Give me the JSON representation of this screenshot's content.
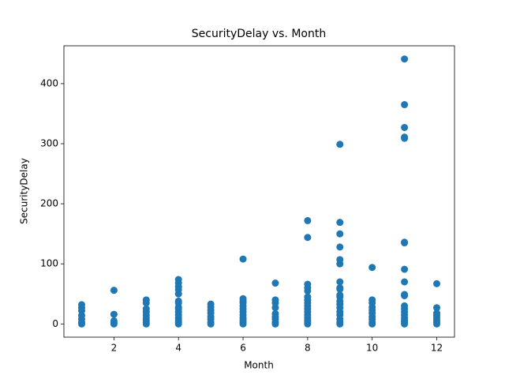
{
  "chart_data": {
    "type": "scatter",
    "title": "SecurityDelay vs. Month",
    "x_label": "Month",
    "y_label": "SecurityDelay",
    "color": "#1f77b4",
    "x": [
      1,
      1,
      1,
      1,
      1,
      1,
      1,
      2,
      2,
      2,
      2,
      2,
      3,
      3,
      3,
      3,
      3,
      3,
      3,
      3,
      3,
      4,
      4,
      4,
      4,
      4,
      4,
      4,
      4,
      4,
      4,
      4,
      4,
      4,
      4,
      4,
      5,
      5,
      5,
      5,
      5,
      5,
      5,
      5,
      6,
      6,
      6,
      6,
      6,
      6,
      6,
      6,
      6,
      6,
      6,
      6,
      7,
      7,
      7,
      7,
      7,
      7,
      7,
      7,
      7,
      8,
      8,
      8,
      8,
      8,
      8,
      8,
      8,
      8,
      8,
      8,
      8,
      8,
      8,
      8,
      8,
      9,
      9,
      9,
      9,
      9,
      9,
      9,
      9,
      9,
      9,
      9,
      9,
      9,
      9,
      9,
      9,
      9,
      9,
      9,
      10,
      10,
      10,
      10,
      10,
      10,
      10,
      10,
      10,
      10,
      11,
      11,
      11,
      11,
      11,
      11,
      11,
      11,
      11,
      11,
      11,
      11,
      11,
      11,
      11,
      11,
      11,
      11,
      11,
      12,
      12,
      12,
      12,
      12,
      12,
      12,
      12
    ],
    "values": [
      0,
      3,
      8,
      14,
      22,
      27,
      32,
      0,
      2,
      5,
      16,
      56,
      0,
      3,
      6,
      10,
      15,
      20,
      25,
      35,
      40,
      0,
      3,
      6,
      10,
      15,
      20,
      25,
      28,
      35,
      38,
      50,
      57,
      62,
      68,
      74,
      0,
      3,
      8,
      12,
      18,
      23,
      28,
      33,
      0,
      3,
      6,
      10,
      15,
      20,
      25,
      30,
      35,
      38,
      42,
      108,
      0,
      3,
      8,
      12,
      17,
      27,
      35,
      40,
      68,
      0,
      3,
      6,
      10,
      15,
      20,
      25,
      30,
      35,
      40,
      45,
      55,
      60,
      66,
      144,
      172,
      0,
      3,
      8,
      15,
      20,
      27,
      33,
      38,
      45,
      48,
      58,
      60,
      70,
      100,
      107,
      128,
      150,
      169,
      299,
      0,
      3,
      8,
      12,
      18,
      23,
      28,
      35,
      40,
      94,
      0,
      3,
      6,
      10,
      15,
      20,
      25,
      30,
      47,
      49,
      70,
      91,
      135,
      136,
      309,
      311,
      327,
      365,
      441,
      0,
      3,
      6,
      10,
      14,
      18,
      27,
      67
    ],
    "xlim": [
      0.45,
      12.55
    ],
    "ylim": [
      -22,
      463
    ],
    "xticks": [
      2,
      4,
      6,
      8,
      10,
      12
    ],
    "yticks": [
      0,
      100,
      200,
      300,
      400
    ]
  }
}
